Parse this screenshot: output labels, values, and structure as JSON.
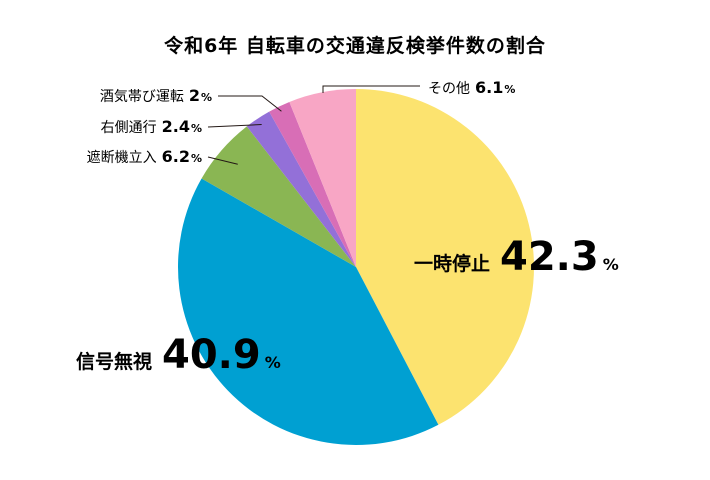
{
  "title": "令和6年 自転車の交通違反検挙件数の割合",
  "chart_data": {
    "type": "pie",
    "unit": "%",
    "slices": [
      {
        "name": "一時停止",
        "value": 42.3,
        "display": "42.3",
        "color": "#fce36f"
      },
      {
        "name": "信号無視",
        "value": 40.9,
        "display": "40.9",
        "color": "#00a0d2"
      },
      {
        "name": "遮断機立入",
        "value": 6.2,
        "display": "6.2",
        "color": "#8ab653"
      },
      {
        "name": "右側通行",
        "value": 2.4,
        "display": "2.4",
        "color": "#9370d8"
      },
      {
        "name": "酒気帯び運転",
        "value": 2,
        "display": "2",
        "color": "#d86eb6"
      },
      {
        "name": "その他",
        "value": 6.1,
        "display": "6.1",
        "color": "#f8a6c5"
      }
    ]
  }
}
